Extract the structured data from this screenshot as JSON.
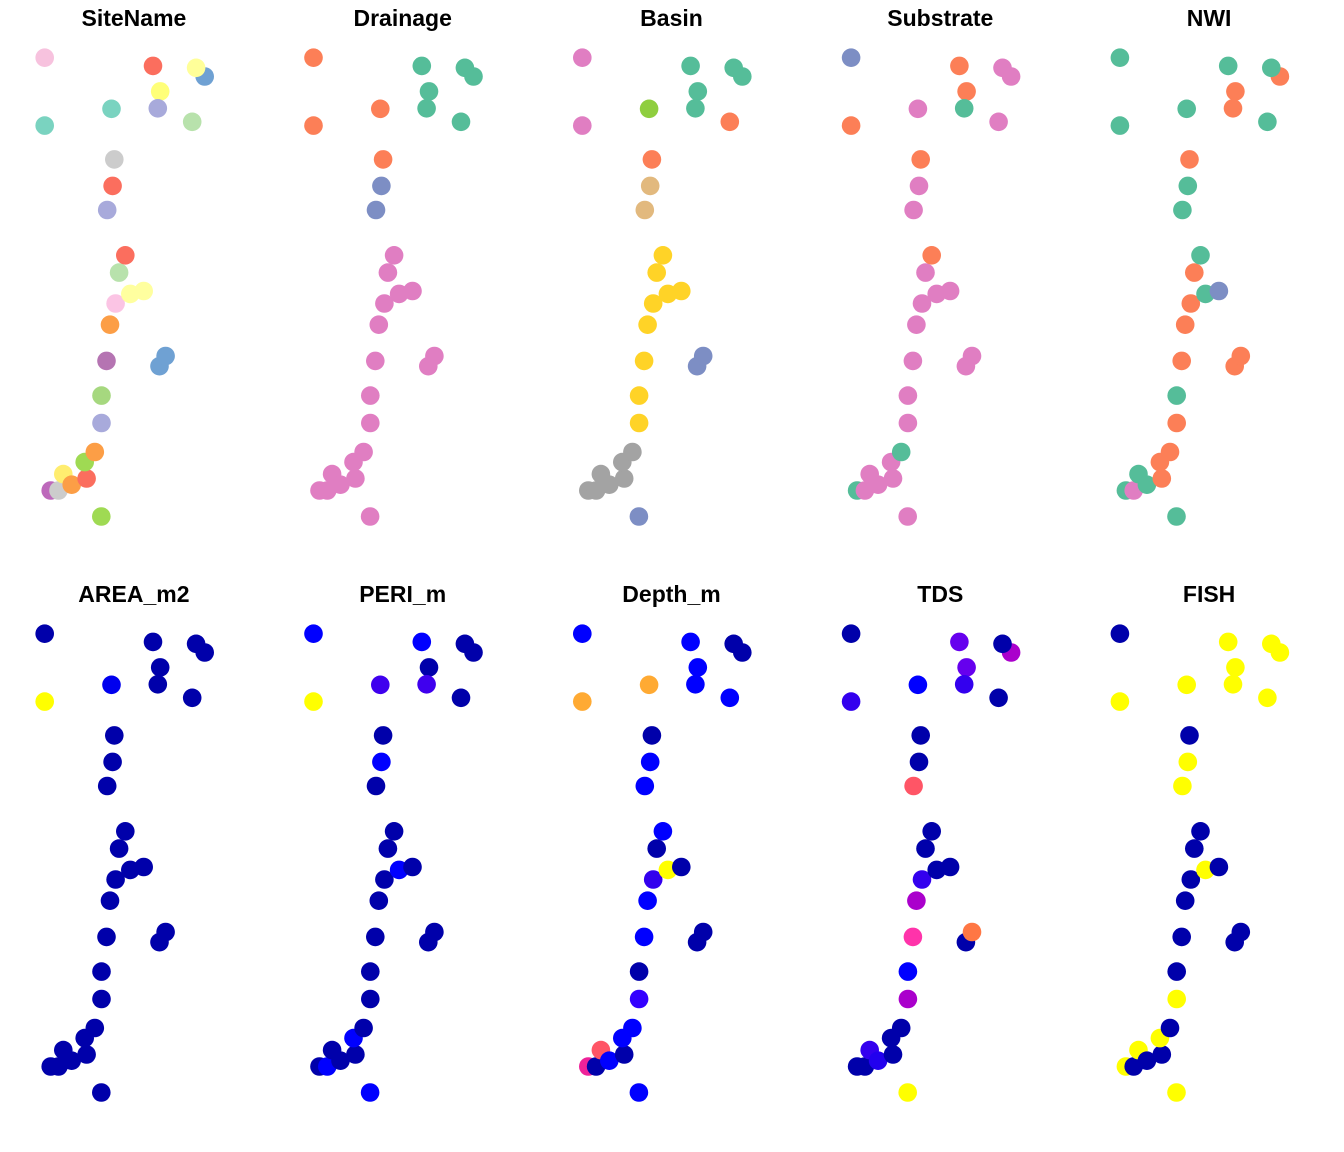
{
  "chart_data": {
    "type": "scatter",
    "panels": [
      {
        "title": "SiteName",
        "colors": [
          "#bd69bb",
          "#cccccc",
          "#ffed6f",
          "#fc9e46",
          "#fb6e5e",
          "#9fda53",
          "#fc9e46",
          "#a8aadb",
          "#a6d87f",
          "#b574b2",
          "#fc9e46",
          "#fbc4e4",
          "#b8e2ac",
          "#fb6e5e",
          "#ffff9f",
          "#ffff9f",
          "#6fa1d3",
          "#6fa1d3",
          "#9fda53",
          "#a8aadb",
          "#fb6e5e",
          "#f7c2de",
          "#fb6e5e",
          "#ffff79",
          "#7ad3c0",
          "#a8aadb",
          "#6fa1d3",
          "#ffff99",
          "#b8e2ac",
          "#cccccc",
          "#7ad3c0"
        ]
      },
      {
        "title": "Drainage",
        "colors": [
          "#e07ec2",
          "#e07ec2",
          "#e07ec2",
          "#e07ec2",
          "#e07ec2",
          "#e07ec2",
          "#e07ec2",
          "#e07ec2",
          "#e07ec2",
          "#e07ec2",
          "#e07ec2",
          "#e07ec2",
          "#e07ec2",
          "#e07ec2",
          "#e07ec2",
          "#e07ec2",
          "#e07ec2",
          "#e07ec2",
          "#e07ec2",
          "#7d8ec4",
          "#7d8ec4",
          "#fc7f57",
          "#55bd99",
          "#55bd99",
          "#fc7f57",
          "#55bd99",
          "#55bd99",
          "#55bd99",
          "#55bd99",
          "#fc7f57",
          "#fc7f57"
        ]
      },
      {
        "title": "Basin",
        "colors": [
          "#a3a3a3",
          "#a3a3a3",
          "#a3a3a3",
          "#a3a3a3",
          "#a3a3a3",
          "#a3a3a3",
          "#a3a3a3",
          "#ffd327",
          "#ffd327",
          "#ffd327",
          "#ffd327",
          "#ffd327",
          "#ffd327",
          "#ffd327",
          "#ffd327",
          "#ffd327",
          "#7d8ec4",
          "#7d8ec4",
          "#7d8ec4",
          "#e2b97e",
          "#e2b97e",
          "#e07ec2",
          "#55bd99",
          "#55bd99",
          "#8fce3f",
          "#55bd99",
          "#55bd99",
          "#55bd99",
          "#fc7f57",
          "#fc7f57",
          "#e07ec2"
        ]
      },
      {
        "title": "Substrate",
        "colors": [
          "#55bd99",
          "#e07ec2",
          "#e07ec2",
          "#e07ec2",
          "#e07ec2",
          "#e07ec2",
          "#55bd99",
          "#e07ec2",
          "#e07ec2",
          "#e07ec2",
          "#e07ec2",
          "#e07ec2",
          "#e07ec2",
          "#fc7f57",
          "#e07ec2",
          "#e07ec2",
          "#e07ec2",
          "#e07ec2",
          "#e07ec2",
          "#e07ec2",
          "#e07ec2",
          "#7d8ec4",
          "#fc7f57",
          "#fc7f57",
          "#e07ec2",
          "#55bd99",
          "#e07ec2",
          "#e07ec2",
          "#e07ec2",
          "#fc7f57",
          "#fc7f57"
        ]
      },
      {
        "title": "NWI",
        "colors": [
          "#55bd99",
          "#e07ec2",
          "#55bd99",
          "#55bd99",
          "#fc7f57",
          "#fc7f57",
          "#fc7f57",
          "#fc7f57",
          "#55bd99",
          "#fc7f57",
          "#fc7f57",
          "#fc7f57",
          "#fc7f57",
          "#55bd99",
          "#55bd99",
          "#7d8ec4",
          "#fc7f57",
          "#fc7f57",
          "#55bd99",
          "#55bd99",
          "#55bd99",
          "#55bd99",
          "#55bd99",
          "#fc7f57",
          "#55bd99",
          "#fc7f57",
          "#fc7f57",
          "#55bd99",
          "#55bd99",
          "#fc7f57",
          "#55bd99"
        ]
      },
      {
        "title": "AREA_m2",
        "colors": [
          "#0000aa",
          "#0000aa",
          "#0000aa",
          "#0000aa",
          "#0000aa",
          "#0000aa",
          "#0000aa",
          "#0000aa",
          "#0000aa",
          "#0000aa",
          "#0000aa",
          "#0000aa",
          "#0000aa",
          "#0000aa",
          "#0000aa",
          "#0000aa",
          "#0000aa",
          "#0000aa",
          "#0000aa",
          "#0000aa",
          "#0000aa",
          "#0000aa",
          "#0000aa",
          "#0000aa",
          "#0000ee",
          "#0000aa",
          "#0000aa",
          "#0000aa",
          "#0000aa",
          "#0000aa",
          "#ffff00"
        ]
      },
      {
        "title": "PERI_m",
        "colors": [
          "#0000aa",
          "#0000ff",
          "#0000aa",
          "#0000aa",
          "#0000aa",
          "#0000ff",
          "#0000aa",
          "#0000aa",
          "#0000aa",
          "#0000aa",
          "#0000aa",
          "#0000aa",
          "#0000aa",
          "#0000aa",
          "#0000ff",
          "#0000aa",
          "#0000aa",
          "#0000aa",
          "#0000ff",
          "#0000aa",
          "#0000ff",
          "#0000ff",
          "#0000ff",
          "#0000aa",
          "#3f00ee",
          "#3f00ee",
          "#0000aa",
          "#0000aa",
          "#0000aa",
          "#0000aa",
          "#ffff00"
        ]
      },
      {
        "title": "Depth_m",
        "colors": [
          "#ee2299",
          "#0000aa",
          "#ff5566",
          "#0000ff",
          "#0000aa",
          "#0000ff",
          "#0000ff",
          "#3300ff",
          "#0000aa",
          "#0000ff",
          "#0000ff",
          "#3300ee",
          "#0000aa",
          "#0000ff",
          "#ffff00",
          "#0000aa",
          "#0000aa",
          "#0000aa",
          "#0000ff",
          "#0000ff",
          "#0000ff",
          "#0000ff",
          "#0000ff",
          "#0000ff",
          "#ffaa33",
          "#0000ff",
          "#0000aa",
          "#0000aa",
          "#0000ff",
          "#0000aa",
          "#ffaa33"
        ]
      },
      {
        "title": "TDS",
        "colors": [
          "#0000aa",
          "#0000aa",
          "#3300ee",
          "#2200ee",
          "#0000aa",
          "#0000aa",
          "#0000aa",
          "#aa00cc",
          "#0000ff",
          "#ff33aa",
          "#aa00cc",
          "#3300ee",
          "#0000aa",
          "#0000aa",
          "#0000aa",
          "#0000aa",
          "#0000aa",
          "#ff7744",
          "#ffff00",
          "#ff5566",
          "#0000aa",
          "#0000aa",
          "#6600ee",
          "#6600ee",
          "#0000ff",
          "#3300ee",
          "#aa00cc",
          "#0000aa",
          "#0000aa",
          "#0000aa",
          "#3300ee"
        ]
      },
      {
        "title": "FISH",
        "colors": [
          "#ffff00",
          "#0000aa",
          "#ffff00",
          "#0000aa",
          "#0000aa",
          "#ffff00",
          "#0000aa",
          "#ffff00",
          "#0000aa",
          "#0000aa",
          "#0000aa",
          "#0000aa",
          "#0000aa",
          "#0000aa",
          "#ffff00",
          "#0000aa",
          "#0000aa",
          "#0000aa",
          "#ffff00",
          "#ffff00",
          "#ffff00",
          "#0000aa",
          "#ffff00",
          "#ffff00",
          "#ffff00",
          "#ffff00",
          "#ffff00",
          "#ffff00",
          "#ffff00",
          "#0000aa",
          "#ffff00"
        ]
      }
    ],
    "points": [
      {
        "x": 0.052,
        "y": 0.916
      },
      {
        "x": 0.094,
        "y": 0.916
      },
      {
        "x": 0.12,
        "y": 0.882
      },
      {
        "x": 0.165,
        "y": 0.904
      },
      {
        "x": 0.245,
        "y": 0.891
      },
      {
        "x": 0.235,
        "y": 0.857
      },
      {
        "x": 0.289,
        "y": 0.836
      },
      {
        "x": 0.325,
        "y": 0.776
      },
      {
        "x": 0.325,
        "y": 0.719
      },
      {
        "x": 0.352,
        "y": 0.647
      },
      {
        "x": 0.371,
        "y": 0.572
      },
      {
        "x": 0.401,
        "y": 0.528
      },
      {
        "x": 0.42,
        "y": 0.464
      },
      {
        "x": 0.453,
        "y": 0.428
      },
      {
        "x": 0.48,
        "y": 0.508
      },
      {
        "x": 0.552,
        "y": 0.502
      },
      {
        "x": 0.637,
        "y": 0.658
      },
      {
        "x": 0.67,
        "y": 0.637
      },
      {
        "x": 0.324,
        "y": 0.97
      },
      {
        "x": 0.356,
        "y": 0.334
      },
      {
        "x": 0.385,
        "y": 0.284
      },
      {
        "x": 0.02,
        "y": 0.018
      },
      {
        "x": 0.602,
        "y": 0.035
      },
      {
        "x": 0.641,
        "y": 0.088
      },
      {
        "x": 0.379,
        "y": 0.124
      },
      {
        "x": 0.628,
        "y": 0.123
      },
      {
        "x": 0.88,
        "y": 0.057
      },
      {
        "x": 0.834,
        "y": 0.039
      },
      {
        "x": 0.813,
        "y": 0.151
      },
      {
        "x": 0.394,
        "y": 0.229
      },
      {
        "x": 0.02,
        "y": 0.159
      }
    ],
    "legend": "none",
    "grid": false
  }
}
